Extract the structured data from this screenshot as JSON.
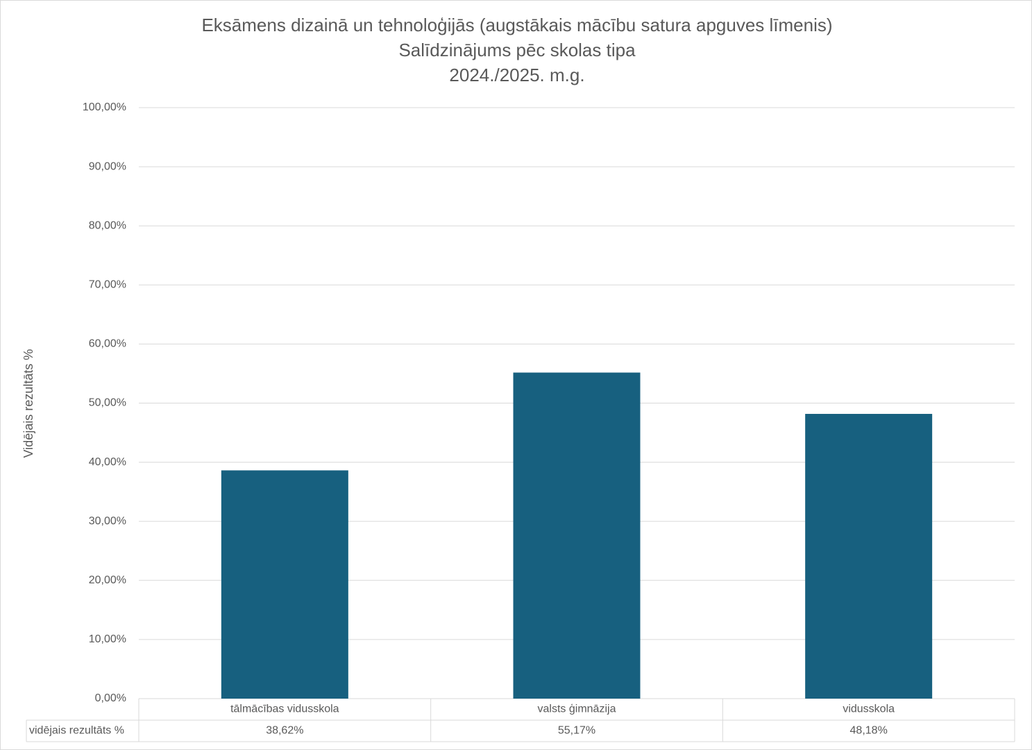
{
  "chart_data": {
    "type": "bar",
    "title": [
      "Eksāmens dizainā un tehnoloģijās (augstākais mācību satura apguves līmenis)",
      "Salīdzinājums pēc skolas tipa",
      "2024./2025. m.g."
    ],
    "y_label": "Vidējais rezultāts %",
    "categories": [
      "tālmācības vidusskola",
      "valsts ģimnāzija",
      "vidusskola"
    ],
    "series": [
      {
        "name": "vidējais rezultāts %",
        "color": "#17607f",
        "values": [
          38.62,
          55.17,
          48.18
        ],
        "value_labels": [
          "38,62%",
          "55,17%",
          "48,18%"
        ]
      }
    ],
    "ylim": [
      0,
      100
    ],
    "yticks": [
      {
        "value": 0,
        "label": "0,00%"
      },
      {
        "value": 10,
        "label": "10,00%"
      },
      {
        "value": 20,
        "label": "20,00%"
      },
      {
        "value": 30,
        "label": "30,00%"
      },
      {
        "value": 40,
        "label": "40,00%"
      },
      {
        "value": 50,
        "label": "50,00%"
      },
      {
        "value": 60,
        "label": "60,00%"
      },
      {
        "value": 70,
        "label": "70,00%"
      },
      {
        "value": 80,
        "label": "80,00%"
      },
      {
        "value": 90,
        "label": "90,00%"
      },
      {
        "value": 100,
        "label": "100,00%"
      }
    ],
    "grid": true
  }
}
